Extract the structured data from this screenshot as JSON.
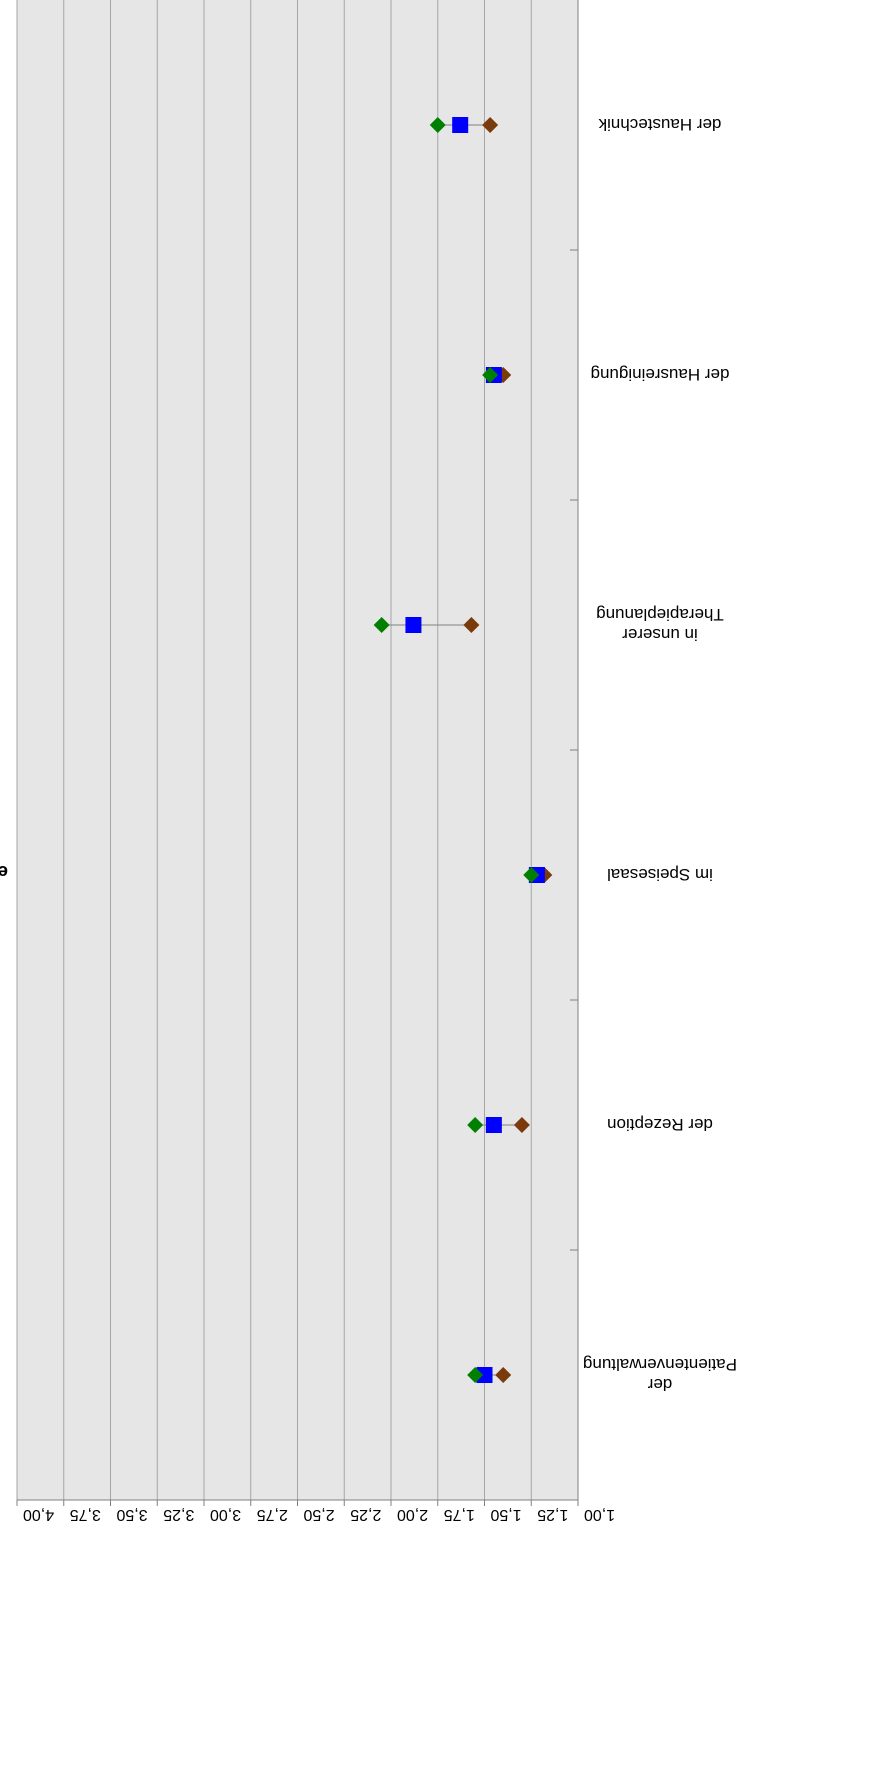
{
  "colors": {
    "plot_background": "#E6E6E6",
    "gridline": "#A6A6A6",
    "axis_line": "#808080",
    "range_line": "#808080",
    "series_low": "#7B3A0B",
    "series_mid": "#0000FF",
    "series_high": "#008000"
  },
  "chart_data": {
    "type": "scatter",
    "orientation": "rotated-180",
    "categories": [
      "der Patientenverwaltung",
      "der Rezeption",
      "im Speisesaal",
      "in unserer Therapieplanung",
      "der Hausreinigung",
      "der Haustechnik"
    ],
    "category_label_lines": [
      [
        "der",
        "Patientenverwaltung"
      ],
      [
        "der Rezeption"
      ],
      [
        "im Speisesaal"
      ],
      [
        "in unserer",
        "Therapieplanung"
      ],
      [
        "der Hausreinigung"
      ],
      [
        "der Haustechnik"
      ]
    ],
    "value_axis": {
      "min": 1.0,
      "max": 4.0,
      "step": 0.25,
      "tick_labels": [
        "1,00",
        "1,25",
        "1,50",
        "1,75",
        "2,00",
        "2,25",
        "2,50",
        "2,75",
        "3,00",
        "3,25",
        "3,50",
        "3,75",
        "4,00"
      ]
    },
    "series": [
      {
        "marker": "diamond",
        "color": "#7B3A0B",
        "values": [
          1.4,
          1.3,
          1.18,
          1.57,
          1.4,
          1.47
        ]
      },
      {
        "marker": "square",
        "color": "#0000FF",
        "values": [
          1.5,
          1.45,
          1.22,
          1.88,
          1.45,
          1.63
        ]
      },
      {
        "marker": "diamond",
        "color": "#008000",
        "values": [
          1.55,
          1.55,
          1.25,
          2.05,
          1.47,
          1.75
        ]
      }
    ],
    "grid": true,
    "legend": "none"
  }
}
